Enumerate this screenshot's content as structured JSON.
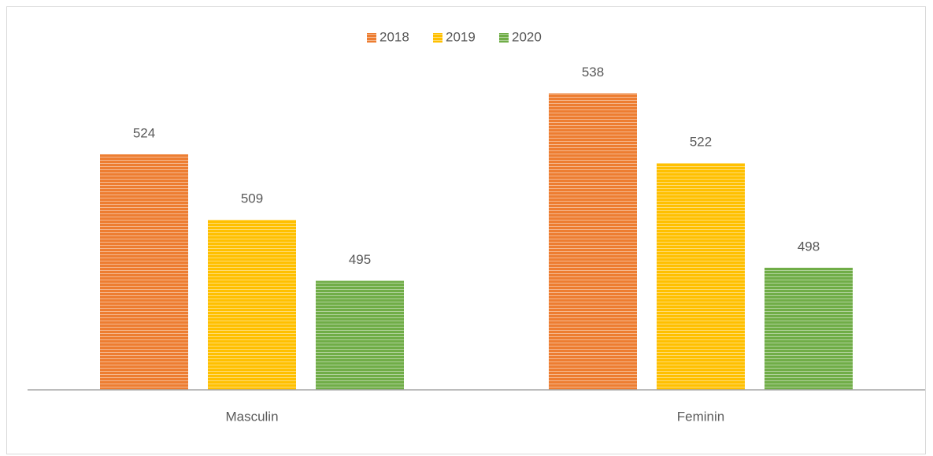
{
  "chart_data": {
    "type": "bar",
    "categories": [
      "Masculin",
      "Feminin"
    ],
    "series": [
      {
        "name": "2018",
        "color": "#ed7d31",
        "values": [
          524,
          538
        ]
      },
      {
        "name": "2019",
        "color": "#ffc000",
        "values": [
          509,
          522
        ]
      },
      {
        "name": "2020",
        "color": "#70ad47",
        "values": [
          495,
          498
        ]
      }
    ],
    "ylim": [
      470,
      550
    ],
    "legend": "top",
    "pattern": "horizontal-stripes"
  }
}
